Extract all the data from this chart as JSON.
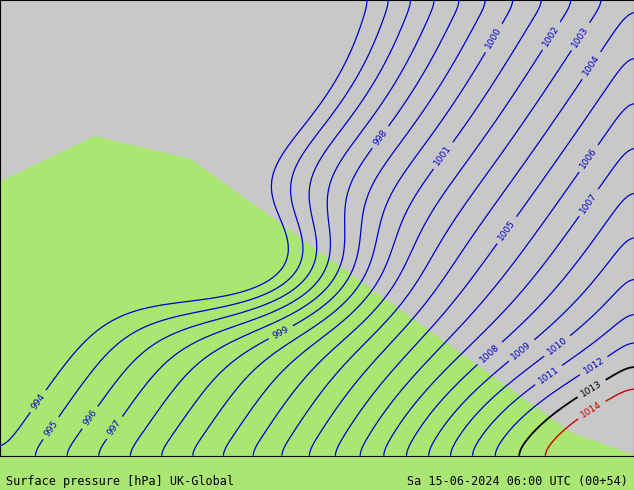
{
  "title_left": "Surface pressure [hPa] UK-Global",
  "title_right": "Sa 15-06-2024 06:00 UTC (00+54)",
  "bg_land_color": "#aae672",
  "bg_sea_color": "#c8c8c8",
  "blue_contour_color": "#0000cc",
  "black_contour_color": "#000000",
  "red_contour_color": "#cc0000",
  "gray_border_color": "#888888",
  "figsize": [
    6.34,
    4.9
  ],
  "dpi": 100,
  "footer_fontsize": 8.5,
  "contour_linewidth": 0.9,
  "label_fontsize": 6.5,
  "lon_min": -12,
  "lon_max": 22,
  "lat_min": 46,
  "lat_max": 62
}
